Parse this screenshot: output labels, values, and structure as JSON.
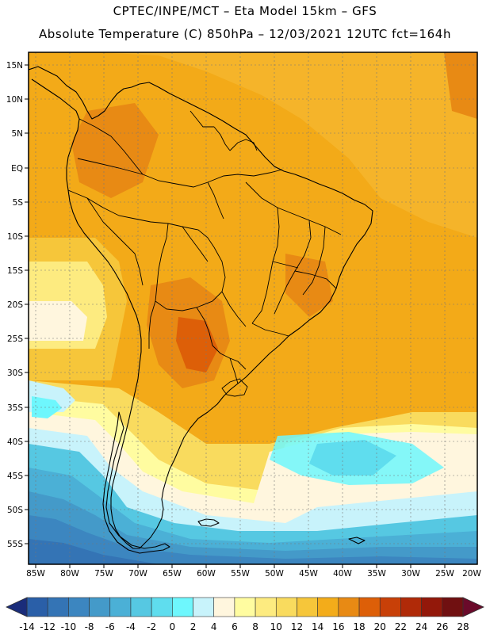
{
  "header": {
    "line1": "CPTEC/INPE/MCT –  Eta Model 15km – GFS",
    "line2": "Absolute Temperature (C) 850hPa – 12/03/2021 12UTC fct=164h"
  },
  "map": {
    "lat_labels": [
      "15N",
      "10N",
      "5N",
      "EQ",
      "5S",
      "10S",
      "15S",
      "20S",
      "25S",
      "30S",
      "35S",
      "40S",
      "45S",
      "50S",
      "55S"
    ],
    "lon_labels": [
      "85W",
      "80W",
      "75W",
      "70W",
      "65W",
      "60W",
      "55W",
      "50W",
      "45W",
      "40W",
      "35W",
      "30W",
      "25W",
      "20W"
    ],
    "lat_range": [
      17,
      -57.5
    ],
    "lon_range": [
      -86,
      -20.5
    ],
    "colors": {
      "background": "#F3AA18",
      "ocean_warm": "#F6C02A",
      "grid": "#777777",
      "coast": "#000000"
    }
  },
  "colorbar": {
    "labels": [
      "-14",
      "-12",
      "-10",
      "-8",
      "-6",
      "-4",
      "-2",
      "0",
      "2",
      "4",
      "6",
      "8",
      "10",
      "12",
      "14",
      "16",
      "18",
      "20",
      "22",
      "24",
      "26",
      "28"
    ],
    "colors": [
      "#244C98",
      "#2A5FA8",
      "#3474B5",
      "#3C86C0",
      "#449AC9",
      "#4BB0D6",
      "#56C8E2",
      "#5FDDEE",
      "#6EF7FD",
      "#C8F3FB",
      "#FFF6DE",
      "#FFFCA0",
      "#FDEB80",
      "#F9DB5E",
      "#F6C63A",
      "#F3AC1A",
      "#E88A14",
      "#DD5F08",
      "#C84008",
      "#B02A08",
      "#93180A",
      "#701011"
    ],
    "low_arrow": "#1A2C7A",
    "high_arrow": "#6A0A2A"
  }
}
